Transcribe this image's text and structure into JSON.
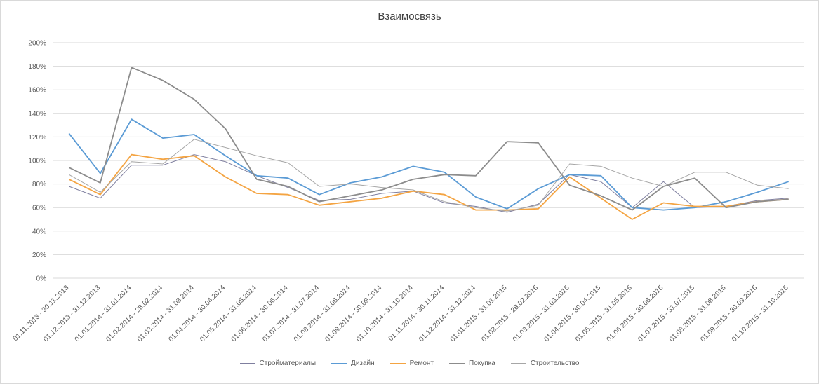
{
  "chart_data": {
    "type": "line",
    "title": "Взаимосвязь",
    "xlabel": "",
    "ylabel": "",
    "ylim": [
      0,
      200
    ],
    "y_unit": "%",
    "y_ticks": [
      "0%",
      "20%",
      "40%",
      "60%",
      "80%",
      "100%",
      "120%",
      "140%",
      "160%",
      "180%",
      "200%"
    ],
    "grid": true,
    "legend_position": "bottom",
    "categories": [
      "01.11.2013 - 30.11.2013",
      "01.12.2013 - 31.12.2013",
      "01.01.2014 - 31.01.2014",
      "01.02.2014 - 28.02.2014",
      "01.03.2014 - 31.03.2014",
      "01.04.2014 - 30.04.2014",
      "01.05.2014 - 31.05.2014",
      "01.06.2014 - 30.06.2014",
      "01.07.2014 - 31.07.2014",
      "01.08.2014 - 31.08.2014",
      "01.09.2014 - 30.09.2014",
      "01.10.2014 - 31.10.2014",
      "01.11.2014 - 30.11.2014",
      "01.12.2014 - 31.12.2014",
      "01.01.2015 - 31.01.2015",
      "01.02.2015 - 28.02.2015",
      "01.03.2015 - 31.03.2015",
      "01.04.2015 - 30.04.2015",
      "01.05.2015 - 31.05.2015",
      "01.06.2015 - 30.06.2015",
      "01.07.2015 - 31.07.2015",
      "01.08.2015 - 31.08.2015",
      "01.09.2015 - 30.09.2015",
      "01.10.2015 - 31.10.2015"
    ],
    "series": [
      {
        "name": "Стройматериалы",
        "color": "#7f7f9f",
        "width": 1,
        "values": [
          78,
          68,
          96,
          96,
          105,
          99,
          87,
          77,
          66,
          67,
          72,
          74,
          64,
          61,
          56,
          63,
          88,
          82,
          60,
          82,
          60,
          61,
          66,
          68
        ]
      },
      {
        "name": "Дизайн",
        "color": "#5b9bd5",
        "width": 1.8,
        "values": [
          123,
          89,
          135,
          119,
          122,
          104,
          87,
          85,
          71,
          81,
          86,
          95,
          90,
          69,
          59,
          76,
          88,
          87,
          60,
          58,
          60,
          65,
          73,
          82
        ]
      },
      {
        "name": "Ремонт",
        "color": "#f4a442",
        "width": 1.8,
        "values": [
          84,
          71,
          105,
          101,
          104,
          86,
          72,
          71,
          62,
          65,
          68,
          74,
          71,
          58,
          58,
          59,
          86,
          68,
          50,
          64,
          61,
          61,
          65,
          67
        ]
      },
      {
        "name": "Покупка",
        "color": "#8c8c8c",
        "width": 1.8,
        "values": [
          94,
          81,
          179,
          168,
          152,
          127,
          84,
          78,
          65,
          70,
          75,
          84,
          88,
          87,
          116,
          115,
          79,
          70,
          58,
          78,
          85,
          60,
          65,
          67
        ]
      },
      {
        "name": "Строительство",
        "color": "#a6a6a6",
        "width": 1,
        "values": [
          88,
          73,
          99,
          97,
          118,
          111,
          104,
          98,
          78,
          80,
          77,
          75,
          65,
          60,
          57,
          62,
          97,
          95,
          85,
          78,
          90,
          90,
          79,
          76
        ]
      }
    ]
  }
}
